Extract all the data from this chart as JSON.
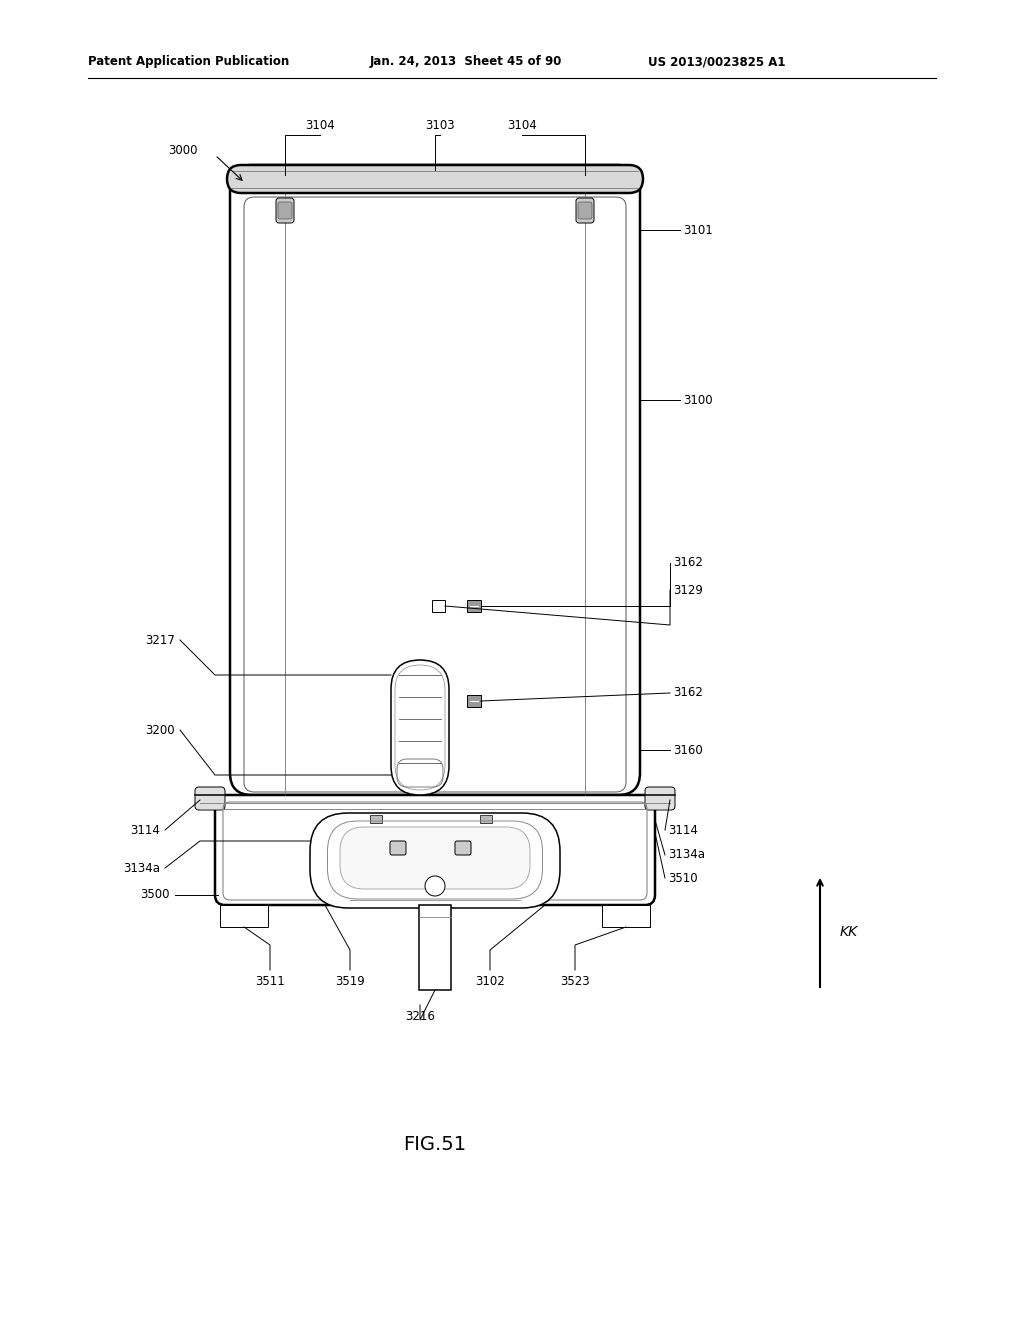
{
  "header_left": "Patent Application Publication",
  "header_mid": "Jan. 24, 2013  Sheet 45 of 90",
  "header_right": "US 2013/0023825 A1",
  "figure_label": "FIG.51",
  "background_color": "#ffffff",
  "line_color": "#000000"
}
